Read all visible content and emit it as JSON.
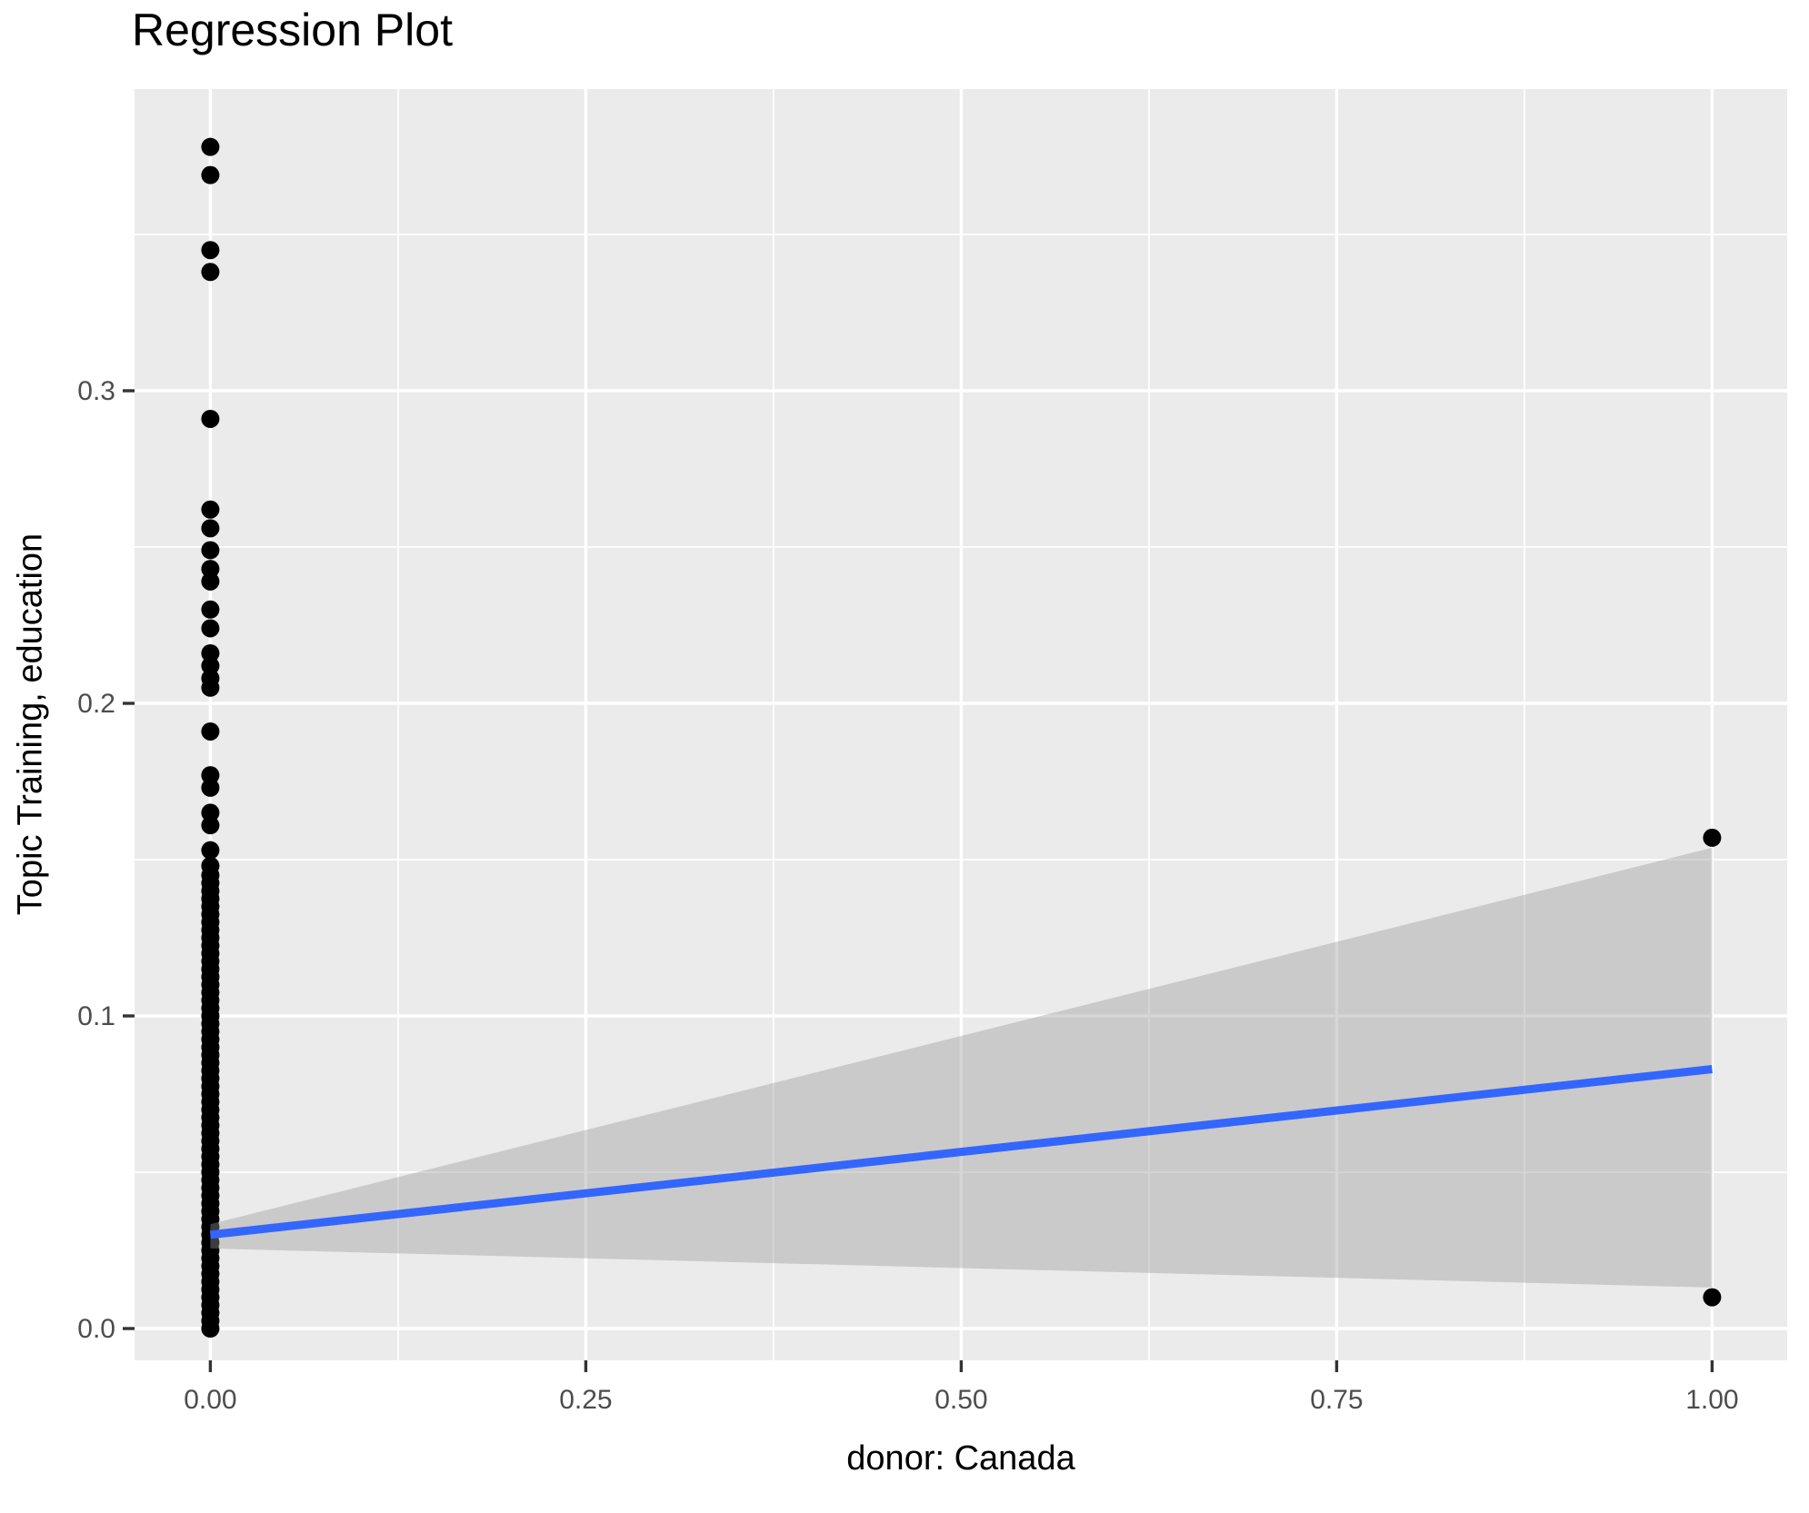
{
  "chart_data": {
    "type": "scatter",
    "title": "Regression Plot",
    "xlabel": "donor: Canada",
    "ylabel": "Topic Training, education",
    "x_axis": {
      "ticks": [
        {
          "value": 0.0,
          "label": "0.00"
        },
        {
          "value": 0.25,
          "label": "0.25"
        },
        {
          "value": 0.5,
          "label": "0.50"
        },
        {
          "value": 0.75,
          "label": "0.75"
        },
        {
          "value": 1.0,
          "label": "1.00"
        }
      ],
      "minor_gridlines": [
        0.125,
        0.375,
        0.625,
        0.875
      ],
      "range_shown": [
        -0.05,
        1.05
      ]
    },
    "y_axis": {
      "ticks": [
        {
          "value": 0.0,
          "label": "0.0"
        },
        {
          "value": 0.1,
          "label": "0.1"
        },
        {
          "value": 0.2,
          "label": "0.2"
        },
        {
          "value": 0.3,
          "label": "0.3"
        }
      ],
      "minor_gridlines": [
        0.05,
        0.15,
        0.25,
        0.35
      ],
      "range_shown": [
        -0.0102,
        0.3966
      ]
    },
    "grid": "white major and minor gridlines on gray panel",
    "legend": "none",
    "series": [
      {
        "name": "observations at donor = 0 (distinct upper points)",
        "x": 0,
        "y_values": [
          0.378,
          0.369,
          0.345,
          0.338,
          0.291,
          0.262,
          0.256,
          0.249,
          0.243,
          0.239,
          0.23,
          0.224,
          0.216,
          0.212,
          0.208,
          0.205,
          0.191,
          0.177,
          0.173,
          0.165,
          0.161,
          0.153,
          0.148
        ]
      },
      {
        "name": "observations at donor = 0 (dense overlapping column)",
        "x": 0,
        "y_band": {
          "from": 0.0,
          "to": 0.146,
          "step": 0.0025
        }
      },
      {
        "name": "observations at donor = 1",
        "x": 1,
        "y_values": [
          0.157,
          0.01
        ]
      }
    ],
    "regression_line": {
      "x": [
        0,
        1
      ],
      "y": [
        0.03,
        0.083
      ],
      "color": "#3366FF"
    },
    "confidence_ribbon": {
      "x": [
        0,
        1
      ],
      "y_upper": [
        0.0334,
        0.1538
      ],
      "y_lower": [
        0.0256,
        0.0131
      ],
      "color": "#999999",
      "opacity": 0.4
    },
    "colors": {
      "background": "#FFFFFF",
      "panel": "#EBEBEB",
      "gridline": "#FFFFFF",
      "points": "#000000",
      "tick_mark": "#333333",
      "tick_label_text": "#4D4D4D",
      "axis_title_text": "#000000",
      "title_text": "#000000"
    }
  }
}
